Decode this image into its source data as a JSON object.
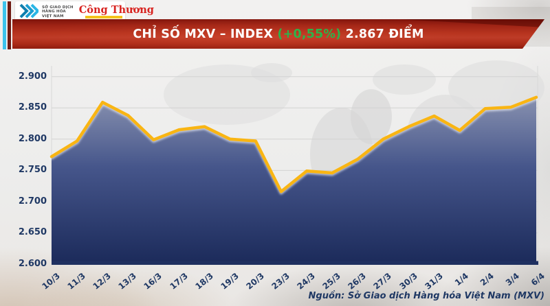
{
  "header": {
    "logo": {
      "mxv_line1": "SỞ GIAO DỊCH",
      "mxv_line2": "HÀNG HÓA",
      "mxv_line3": "VIỆT NAM",
      "congthuong": "Công Thương",
      "mxv_teal": "#1b9ed1",
      "congthuong_red": "#d8231f"
    },
    "banner": {
      "title_prefix": "CHỈ SỐ MXV – INDEX ",
      "change": "(+0,55%)",
      "value": " 2.867 ĐIỂM",
      "change_color": "#2db34a",
      "banner_red": "#b7341f"
    }
  },
  "chart_data": {
    "type": "area",
    "title": "CHỈ SỐ MXV – INDEX (+0,55%) 2.867 ĐIỂM",
    "categories": [
      "10/3",
      "11/3",
      "12/3",
      "13/3",
      "16/3",
      "17/3",
      "18/3",
      "19/3",
      "20/3",
      "23/3",
      "24/3",
      "25/3",
      "26/3",
      "27/3",
      "30/3",
      "31/3",
      "1/4",
      "2/4",
      "3/4",
      "6/4"
    ],
    "values": [
      2772,
      2797,
      2859,
      2838,
      2799,
      2815,
      2820,
      2800,
      2797,
      2716,
      2749,
      2746,
      2768,
      2800,
      2820,
      2837,
      2814,
      2849,
      2851,
      2867
    ],
    "xlabel": "",
    "ylabel": "",
    "ylim": [
      2600,
      2900
    ],
    "yticks": [
      2900,
      2850,
      2800,
      2750,
      2700,
      2650,
      2600
    ],
    "ytick_labels": [
      "2.900",
      "2.850",
      "2.800",
      "2.750",
      "2.700",
      "2.650",
      "2.600"
    ],
    "grid": true,
    "legend": "none",
    "line_color": "#f9b513",
    "area_top_color": "#8992b0",
    "area_mid_color": "#46568b",
    "area_bottom_color": "#1b2a5a",
    "axis_color": "#1f3864",
    "grid_color": "#d2d2d2",
    "baseline_color": "#1f3060"
  },
  "footer": {
    "source": "Nguồn: Sở Giao dịch Hàng hóa Việt Nam (MXV)"
  }
}
